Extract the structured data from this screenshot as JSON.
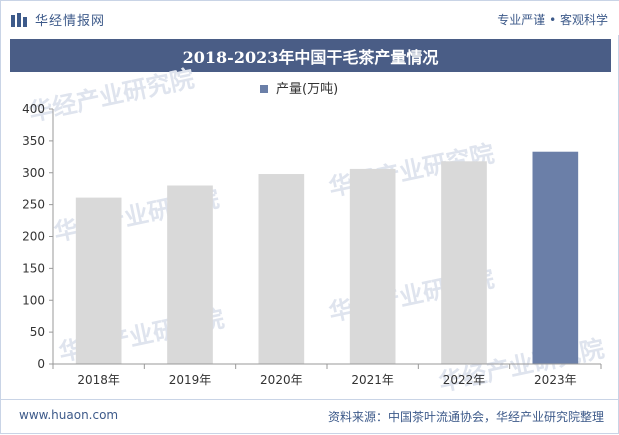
{
  "header": {
    "brand_name": "华经情报网",
    "tagline": "专业严谨 • 客观科学"
  },
  "title": "2018-2023年中国干毛茶产量情况",
  "footer": {
    "website": "www.huaon.com",
    "source": "资料来源：中国茶叶流通协会，华经产业研究院整理"
  },
  "watermark_text": "华经产业研究院",
  "colors": {
    "brand": "#3d5a8a",
    "title_bar": "#4a5d86",
    "bar_default": "#d9d9d9",
    "bar_highlight": "#6b7fa8",
    "legend_marker": "#6b7fa8"
  },
  "chart_data": {
    "type": "bar",
    "categories": [
      "2018年",
      "2019年",
      "2020年",
      "2021年",
      "2022年",
      "2023年"
    ],
    "series": [
      {
        "name": "产量(万吨)",
        "values": [
          261,
          280,
          298,
          306,
          318,
          333
        ]
      }
    ],
    "highlight_index": 5,
    "ylim": [
      0,
      400
    ],
    "yticks": [
      0,
      50,
      100,
      150,
      200,
      250,
      300,
      350,
      400
    ],
    "legend_position": "top-center",
    "grid": false
  }
}
